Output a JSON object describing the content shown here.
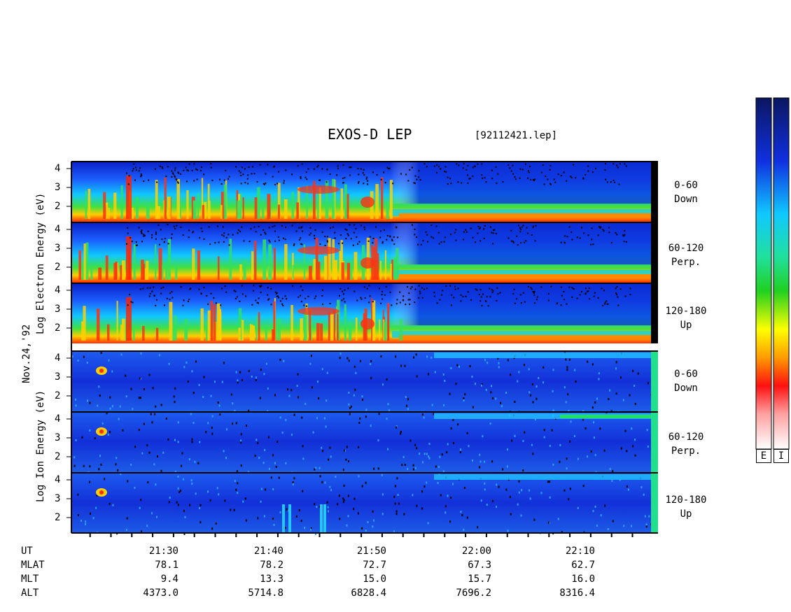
{
  "header": {
    "title": "EXOS-D LEP",
    "file": "[92112421.lep]"
  },
  "labels": {
    "date": "Nov.24,'92",
    "electron_axis": [
      "Log",
      "Electron",
      "Energy",
      "(eV)"
    ],
    "ion_axis": [
      "Log",
      "Ion",
      "Energy",
      "(eV)"
    ]
  },
  "panels": {
    "electron": [
      {
        "range": "0-60",
        "dir": "Down"
      },
      {
        "range": "60-120",
        "dir": "Perp."
      },
      {
        "range": "120-180",
        "dir": "Up"
      }
    ],
    "ion": [
      {
        "range": "0-60",
        "dir": "Down"
      },
      {
        "range": "60-120",
        "dir": "Perp."
      },
      {
        "range": "120-180",
        "dir": "Up"
      }
    ]
  },
  "colorbar": {
    "labels": [
      "E",
      "I"
    ]
  },
  "chart_data": {
    "type": "heatmap",
    "y_ticks": [
      "4",
      "3",
      "2"
    ],
    "x_ticks": [
      "21:30",
      "21:40",
      "21:50",
      "22:00",
      "22:10"
    ],
    "ephemeris": [
      {
        "name": "UT",
        "values": [
          "",
          "",
          "",
          "",
          ""
        ]
      },
      {
        "name": "MLAT",
        "values": [
          "78.1",
          "78.2",
          "72.7",
          "67.3",
          "62.7"
        ]
      },
      {
        "name": "MLT",
        "values": [
          "9.4",
          "13.3",
          "15.0",
          "15.7",
          "16.0"
        ]
      },
      {
        "name": "ALT",
        "values": [
          "4373.0",
          "5714.8",
          "6828.4",
          "7696.2",
          "8316.4"
        ]
      }
    ]
  }
}
